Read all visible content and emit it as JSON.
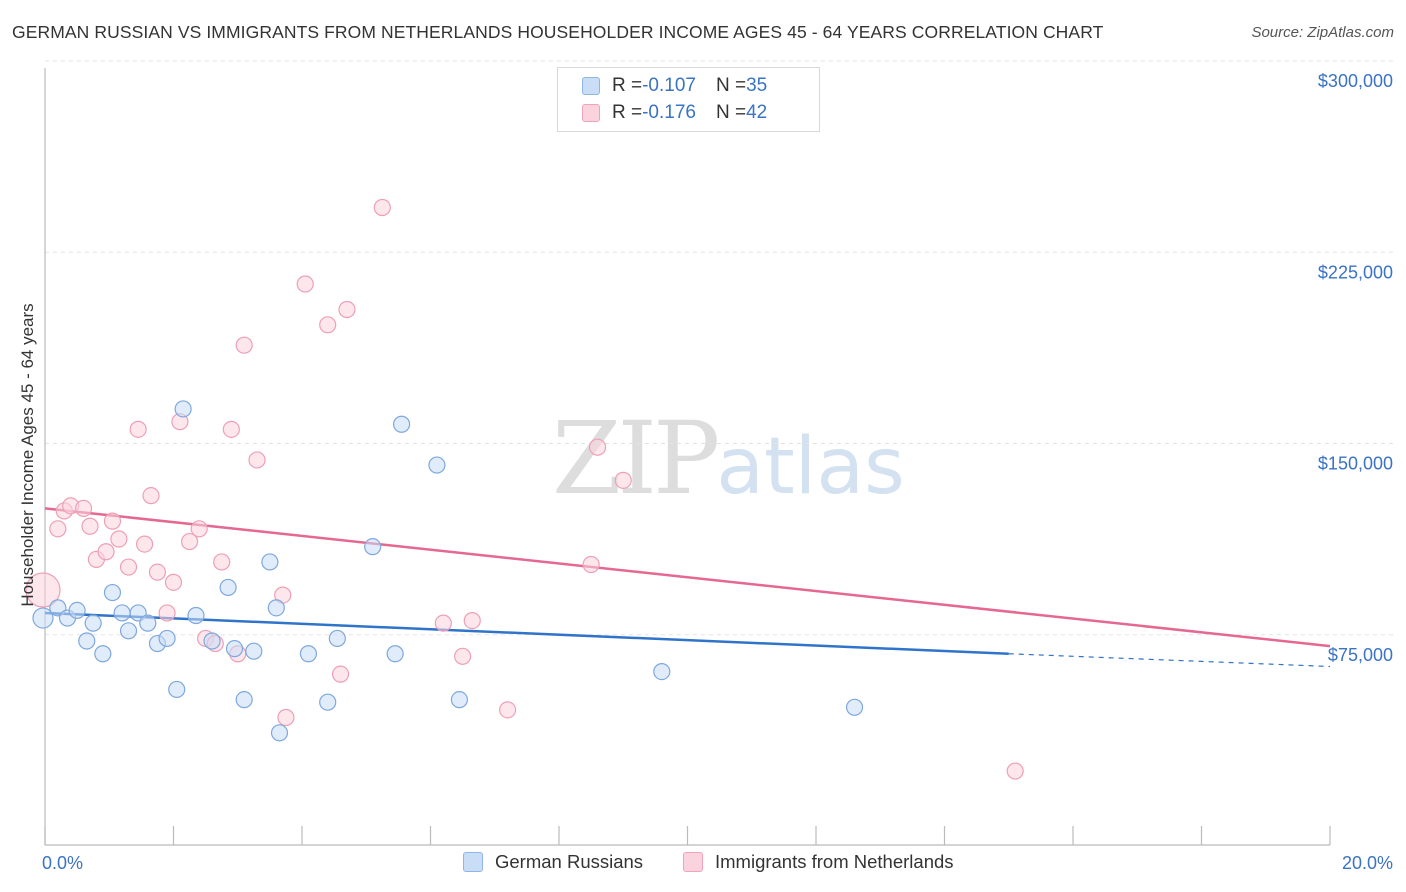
{
  "title": "GERMAN RUSSIAN VS IMMIGRANTS FROM NETHERLANDS HOUSEHOLDER INCOME AGES 45 - 64 YEARS CORRELATION CHART",
  "source": "Source: ZipAtlas.com",
  "watermark": {
    "zip": "ZIP",
    "atlas": "atlas"
  },
  "stats": [
    {
      "r_label": "R = ",
      "r_value": "-0.107",
      "n_label": "N = ",
      "n_value": "35",
      "color": "#a8c8f0"
    },
    {
      "r_label": "R = ",
      "r_value": "-0.176",
      "n_label": "N = ",
      "n_value": "42",
      "color": "#f7b6c8"
    }
  ],
  "legend": [
    {
      "label": "German Russians",
      "color": "#a8c8f0"
    },
    {
      "label": "Immigrants from Netherlands",
      "color": "#f7b6c8"
    }
  ],
  "colors": {
    "blue_fill": "#a8c8f0",
    "blue_line": "#2f74c9",
    "pink_fill": "#f7b6c8",
    "pink_line": "#e4688f",
    "tick_label": "#3a73c4",
    "grid": "#e3e3e3"
  },
  "chart_data": {
    "type": "scatter",
    "title": "GERMAN RUSSIAN VS IMMIGRANTS FROM NETHERLANDS HOUSEHOLDER INCOME AGES 45 - 64 YEARS CORRELATION CHART",
    "xlabel": "",
    "ylabel": "Householder Income Ages 45 - 64 years",
    "xlim": [
      0,
      20
    ],
    "ylim": [
      0,
      300000
    ],
    "x_tick_labels": [
      "0.0%",
      "20.0%"
    ],
    "y_ticks": [
      75000,
      150000,
      225000,
      300000
    ],
    "y_tick_labels": [
      "$75,000",
      "$150,000",
      "$225,000",
      "$300,000"
    ],
    "grid": true,
    "legend_position": "bottom",
    "series": [
      {
        "name": "German Russians",
        "color": "#a8c8f0",
        "points": [
          [
            0.0,
            89000
          ],
          [
            0.2,
            93000
          ],
          [
            0.35,
            89000
          ],
          [
            0.5,
            92000
          ],
          [
            0.65,
            80000
          ],
          [
            0.75,
            87000
          ],
          [
            0.9,
            75000
          ],
          [
            1.05,
            99000
          ],
          [
            1.2,
            91000
          ],
          [
            1.3,
            84000
          ],
          [
            1.45,
            91000
          ],
          [
            1.6,
            87000
          ],
          [
            1.75,
            79000
          ],
          [
            1.9,
            81000
          ],
          [
            2.05,
            61000
          ],
          [
            2.15,
            171000
          ],
          [
            2.35,
            90000
          ],
          [
            2.6,
            80000
          ],
          [
            2.85,
            101000
          ],
          [
            2.95,
            77000
          ],
          [
            3.1,
            57000
          ],
          [
            3.25,
            76000
          ],
          [
            3.5,
            111000
          ],
          [
            3.6,
            93000
          ],
          [
            3.65,
            44000
          ],
          [
            4.1,
            75000
          ],
          [
            4.4,
            56000
          ],
          [
            4.55,
            81000
          ],
          [
            5.1,
            117000
          ],
          [
            5.45,
            75000
          ],
          [
            5.55,
            165000
          ],
          [
            6.1,
            149000
          ],
          [
            6.45,
            57000
          ],
          [
            9.6,
            68000
          ],
          [
            12.6,
            54000
          ]
        ],
        "trend": {
          "x": [
            0,
            15.0
          ],
          "y": [
            91000,
            75000
          ],
          "dashed_to": [
            20,
            70000
          ]
        }
      },
      {
        "name": "Immigrants from Netherlands",
        "color": "#f7b6c8",
        "points": [
          [
            0.0,
            100000
          ],
          [
            0.2,
            124000
          ],
          [
            0.3,
            131000
          ],
          [
            0.4,
            133000
          ],
          [
            0.6,
            132000
          ],
          [
            0.7,
            125000
          ],
          [
            0.8,
            112000
          ],
          [
            0.95,
            115000
          ],
          [
            1.05,
            127000
          ],
          [
            1.15,
            120000
          ],
          [
            1.3,
            109000
          ],
          [
            1.45,
            163000
          ],
          [
            1.55,
            118000
          ],
          [
            1.65,
            137000
          ],
          [
            1.75,
            107000
          ],
          [
            1.9,
            91000
          ],
          [
            2.0,
            103000
          ],
          [
            2.1,
            166000
          ],
          [
            2.25,
            119000
          ],
          [
            2.4,
            124000
          ],
          [
            2.5,
            81000
          ],
          [
            2.65,
            79000
          ],
          [
            2.75,
            111000
          ],
          [
            2.9,
            163000
          ],
          [
            3.0,
            75000
          ],
          [
            3.1,
            196000
          ],
          [
            3.3,
            151000
          ],
          [
            3.75,
            50000
          ],
          [
            3.7,
            98000
          ],
          [
            4.05,
            220000
          ],
          [
            4.4,
            204000
          ],
          [
            4.6,
            67000
          ],
          [
            4.7,
            210000
          ],
          [
            5.25,
            250000
          ],
          [
            6.2,
            87000
          ],
          [
            6.5,
            74000
          ],
          [
            6.65,
            88000
          ],
          [
            7.2,
            53000
          ],
          [
            8.5,
            110000
          ],
          [
            8.6,
            156000
          ],
          [
            9.0,
            143000
          ],
          [
            15.1,
            29000
          ]
        ],
        "trend": {
          "x": [
            0,
            20
          ],
          "y": [
            132000,
            78000
          ]
        }
      }
    ]
  }
}
